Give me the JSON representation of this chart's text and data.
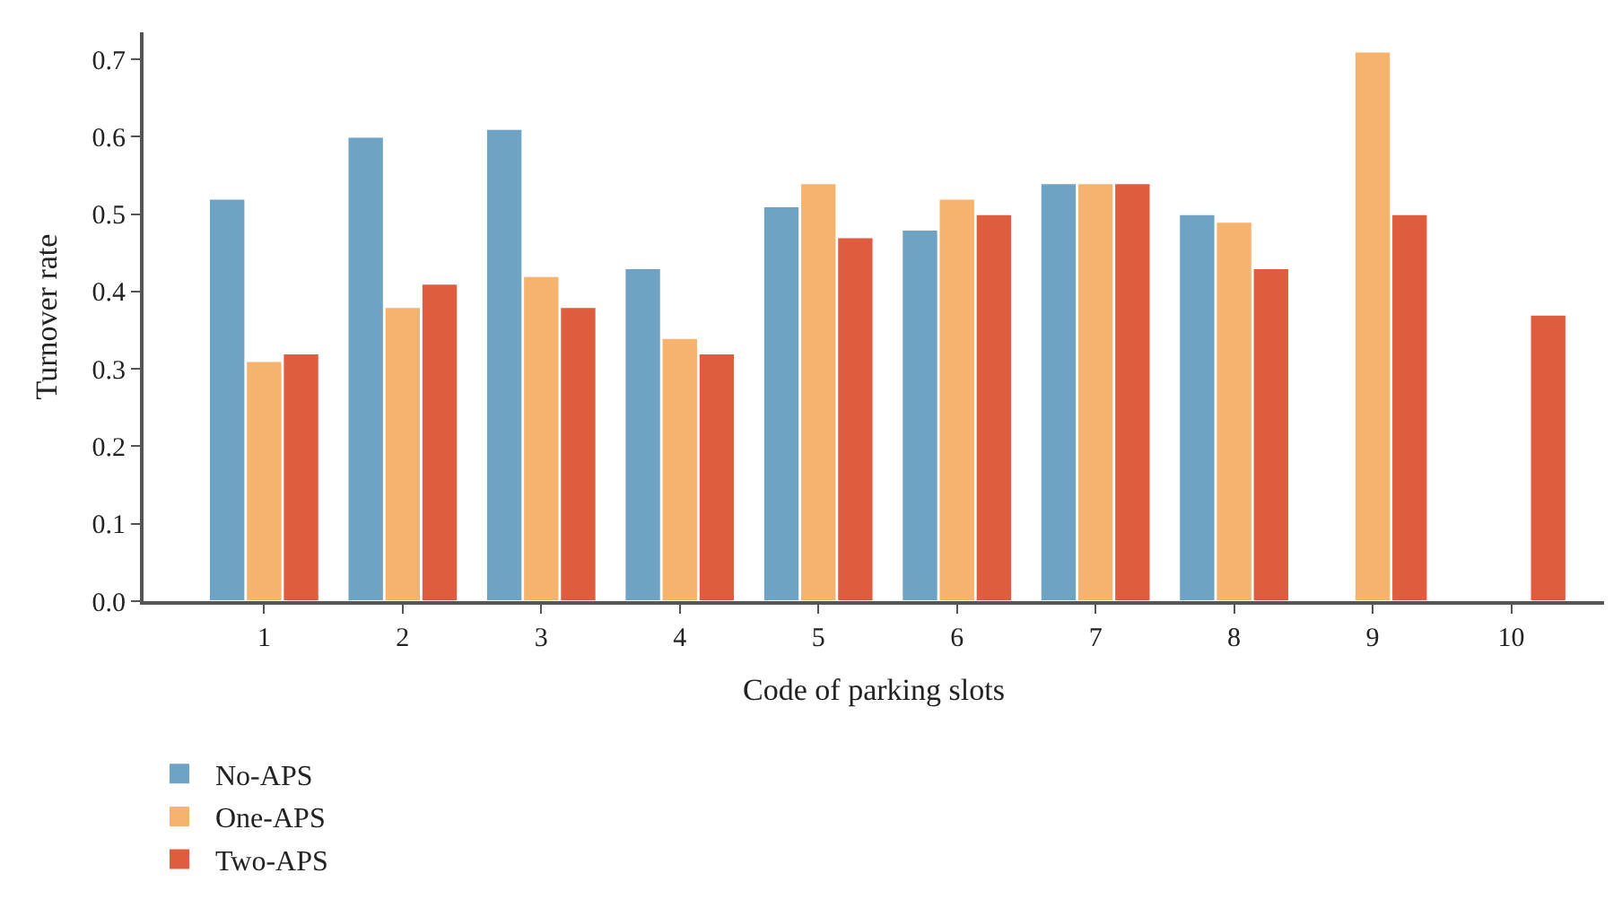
{
  "chart_data": {
    "type": "bar",
    "xlabel": "Code of parking slots",
    "ylabel": "Turnover rate",
    "categories": [
      "1",
      "2",
      "3",
      "4",
      "5",
      "6",
      "7",
      "8",
      "9",
      "10"
    ],
    "series": [
      {
        "name": "No-APS",
        "color": "#6fa3c4",
        "values": [
          0.52,
          0.6,
          0.61,
          0.43,
          0.51,
          0.48,
          0.54,
          0.5,
          null,
          null
        ]
      },
      {
        "name": "One-APS",
        "color": "#f5b36e",
        "values": [
          0.31,
          0.38,
          0.42,
          0.34,
          0.54,
          0.52,
          0.54,
          0.49,
          0.71,
          null
        ]
      },
      {
        "name": "Two-APS",
        "color": "#e05c3f",
        "values": [
          0.32,
          0.41,
          0.38,
          0.32,
          0.47,
          0.5,
          0.54,
          0.43,
          0.5,
          0.37
        ]
      }
    ],
    "ylim": [
      0,
      0.735
    ],
    "yticks": [
      {
        "value": 0,
        "label": "0.0"
      },
      0.1,
      0.2,
      0.3,
      0.4,
      0.5,
      0.6,
      0.7
    ],
    "legend": "bottom left"
  }
}
